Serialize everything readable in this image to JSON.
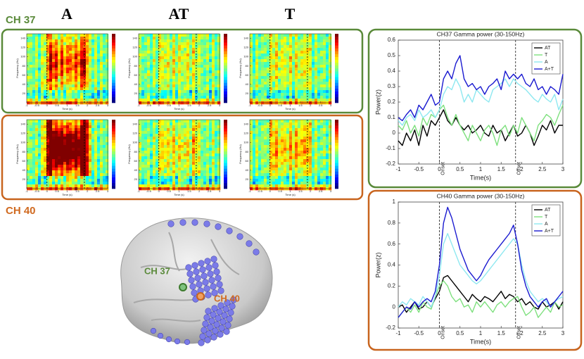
{
  "panels": {
    "channels": [
      "CH 37",
      "CH 40"
    ],
    "conditions": [
      "A",
      "AT",
      "T"
    ],
    "spectrogram": {
      "xlabel": "Time (s)",
      "ylabel": "Frequency (Hz)",
      "xlim": [
        -1,
        3
      ],
      "ylim": [
        0,
        150
      ],
      "xticks": [
        -1,
        -0.5,
        0,
        0.5,
        1,
        1.5,
        2,
        2.5,
        3
      ],
      "yticks": [
        20,
        40,
        60,
        80,
        100,
        120,
        140
      ]
    }
  },
  "brain": {
    "labels": [
      "CH 37",
      "CH 40"
    ]
  },
  "chart_data": [
    {
      "type": "line",
      "title": "CH37 Gamma power (30-150Hz)",
      "xlabel": "Time(s)",
      "ylabel": "Power(z)",
      "xlim": [
        -1,
        3
      ],
      "ylim": [
        -0.2,
        0.6
      ],
      "xticks": [
        -1,
        -0.5,
        0,
        0.5,
        1,
        1.5,
        2,
        2.5,
        3
      ],
      "yticks": [
        -0.2,
        -0.1,
        0,
        0.1,
        0.2,
        0.3,
        0.4,
        0.5,
        0.6
      ],
      "legend": "upper right",
      "vlines": [
        {
          "value": 0,
          "label": "Onset"
        },
        {
          "value": 1.85,
          "label": "Offset"
        }
      ],
      "x": [
        -1,
        -0.9,
        -0.8,
        -0.7,
        -0.6,
        -0.5,
        -0.4,
        -0.3,
        -0.2,
        -0.1,
        0,
        0.1,
        0.2,
        0.3,
        0.4,
        0.5,
        0.6,
        0.7,
        0.8,
        0.9,
        1,
        1.1,
        1.2,
        1.3,
        1.4,
        1.5,
        1.6,
        1.7,
        1.8,
        1.9,
        2,
        2.1,
        2.2,
        2.3,
        2.4,
        2.5,
        2.6,
        2.7,
        2.8,
        2.9,
        3
      ],
      "series": [
        {
          "name": "AT",
          "color": "#000000",
          "values": [
            -0.05,
            -0.08,
            0.0,
            -0.05,
            0.02,
            -0.08,
            0.05,
            -0.02,
            0.08,
            0.05,
            0.1,
            0.15,
            0.08,
            0.05,
            0.1,
            0.05,
            0.02,
            0.05,
            0.0,
            0.02,
            0.05,
            0.0,
            -0.02,
            0.05,
            0.0,
            0.02,
            -0.05,
            0.0,
            0.05,
            -0.02,
            0.0,
            0.05,
            0.0,
            -0.08,
            -0.02,
            0.05,
            0.02,
            0.08,
            0.0,
            0.05,
            0.05
          ]
        },
        {
          "name": "T",
          "color": "#7ee07e",
          "values": [
            0.05,
            0.02,
            0.08,
            0.0,
            0.05,
            -0.02,
            0.1,
            0.05,
            0.12,
            0.1,
            0.15,
            0.18,
            0.1,
            0.05,
            0.12,
            0.05,
            0.0,
            -0.05,
            0.05,
            0.0,
            -0.05,
            0.02,
            0.05,
            0.0,
            -0.08,
            0.02,
            0.05,
            -0.02,
            0.05,
            0.0,
            0.1,
            0.05,
            0.0,
            -0.05,
            0.05,
            0.08,
            0.12,
            0.1,
            0.05,
            0.12,
            0.18
          ]
        },
        {
          "name": "A",
          "color": "#8ee8f0",
          "values": [
            0.08,
            0.05,
            0.1,
            0.12,
            0.08,
            0.15,
            0.1,
            0.12,
            0.15,
            0.1,
            0.15,
            0.25,
            0.3,
            0.28,
            0.35,
            0.3,
            0.2,
            0.25,
            0.2,
            0.28,
            0.25,
            0.22,
            0.2,
            0.28,
            0.3,
            0.32,
            0.35,
            0.3,
            0.35,
            0.32,
            0.3,
            0.28,
            0.25,
            0.22,
            0.2,
            0.25,
            0.22,
            0.2,
            0.25,
            0.15,
            0.22
          ]
        },
        {
          "name": "A+T",
          "color": "#1a1ad0",
          "values": [
            0.1,
            0.08,
            0.12,
            0.15,
            0.1,
            0.18,
            0.15,
            0.2,
            0.25,
            0.18,
            0.2,
            0.35,
            0.4,
            0.35,
            0.45,
            0.5,
            0.35,
            0.3,
            0.32,
            0.28,
            0.3,
            0.25,
            0.3,
            0.32,
            0.35,
            0.28,
            0.4,
            0.35,
            0.38,
            0.35,
            0.38,
            0.32,
            0.3,
            0.35,
            0.28,
            0.3,
            0.25,
            0.3,
            0.28,
            0.25,
            0.38
          ]
        }
      ]
    },
    {
      "type": "line",
      "title": "CH40 Gamma power (30-150Hz)",
      "xlabel": "Time(s)",
      "ylabel": "Power(z)",
      "xlim": [
        -1,
        3
      ],
      "ylim": [
        -0.2,
        1
      ],
      "xticks": [
        -1,
        -0.5,
        0,
        0.5,
        1,
        1.5,
        2,
        2.5,
        3
      ],
      "yticks": [
        -0.2,
        0,
        0.2,
        0.4,
        0.6,
        0.8,
        1
      ],
      "legend": "upper right",
      "vlines": [
        {
          "value": 0,
          "label": "Onset"
        },
        {
          "value": 1.85,
          "label": "Offset"
        }
      ],
      "x": [
        -1,
        -0.9,
        -0.8,
        -0.7,
        -0.6,
        -0.5,
        -0.4,
        -0.3,
        -0.2,
        -0.1,
        0,
        0.1,
        0.2,
        0.3,
        0.4,
        0.5,
        0.6,
        0.7,
        0.8,
        0.9,
        1,
        1.1,
        1.2,
        1.3,
        1.4,
        1.5,
        1.6,
        1.7,
        1.8,
        1.9,
        2,
        2.1,
        2.2,
        2.3,
        2.4,
        2.5,
        2.6,
        2.7,
        2.8,
        2.9,
        3
      ],
      "series": [
        {
          "name": "AT",
          "color": "#000000",
          "values": [
            0.0,
            0.02,
            -0.05,
            0.0,
            0.05,
            -0.02,
            0.0,
            0.05,
            0.0,
            0.08,
            0.15,
            0.28,
            0.3,
            0.25,
            0.2,
            0.15,
            0.1,
            0.05,
            0.12,
            0.08,
            0.05,
            0.1,
            0.08,
            0.05,
            0.1,
            0.15,
            0.08,
            0.12,
            0.1,
            0.05,
            0.08,
            0.02,
            0.05,
            0.0,
            -0.02,
            0.05,
            0.0,
            0.02,
            0.05,
            -0.02,
            0.05
          ]
        },
        {
          "name": "T",
          "color": "#7ee07e",
          "values": [
            -0.1,
            -0.05,
            0.0,
            -0.05,
            0.02,
            -0.05,
            0.05,
            0.0,
            -0.02,
            0.1,
            0.2,
            0.25,
            0.2,
            0.1,
            0.05,
            0.08,
            0.0,
            0.02,
            -0.05,
            0.05,
            0.0,
            0.05,
            0.0,
            -0.05,
            0.02,
            0.05,
            0.0,
            0.05,
            0.08,
            0.1,
            0.0,
            -0.08,
            -0.05,
            0.0,
            -0.1,
            -0.05,
            0.0,
            -0.05,
            0.05,
            0.0,
            0.02
          ]
        },
        {
          "name": "A",
          "color": "#8ee8f0",
          "values": [
            0.0,
            0.05,
            0.02,
            0.08,
            0.05,
            0.02,
            0.1,
            0.05,
            0.0,
            0.1,
            0.3,
            0.6,
            0.7,
            0.6,
            0.5,
            0.4,
            0.35,
            0.3,
            0.25,
            0.22,
            0.25,
            0.3,
            0.35,
            0.4,
            0.45,
            0.5,
            0.55,
            0.6,
            0.65,
            0.6,
            0.4,
            0.25,
            0.15,
            0.1,
            0.05,
            0.08,
            0.05,
            0.0,
            0.05,
            0.08,
            0.1
          ]
        },
        {
          "name": "A+T",
          "color": "#1a1ad0",
          "values": [
            -0.1,
            -0.05,
            0.0,
            -0.02,
            0.05,
            0.0,
            0.05,
            0.08,
            0.05,
            0.15,
            0.4,
            0.8,
            0.95,
            0.85,
            0.7,
            0.55,
            0.45,
            0.35,
            0.3,
            0.25,
            0.3,
            0.38,
            0.45,
            0.5,
            0.55,
            0.6,
            0.65,
            0.7,
            0.78,
            0.6,
            0.35,
            0.2,
            0.1,
            0.05,
            0.0,
            0.05,
            0.08,
            0.0,
            0.05,
            0.1,
            0.15
          ]
        }
      ]
    }
  ]
}
